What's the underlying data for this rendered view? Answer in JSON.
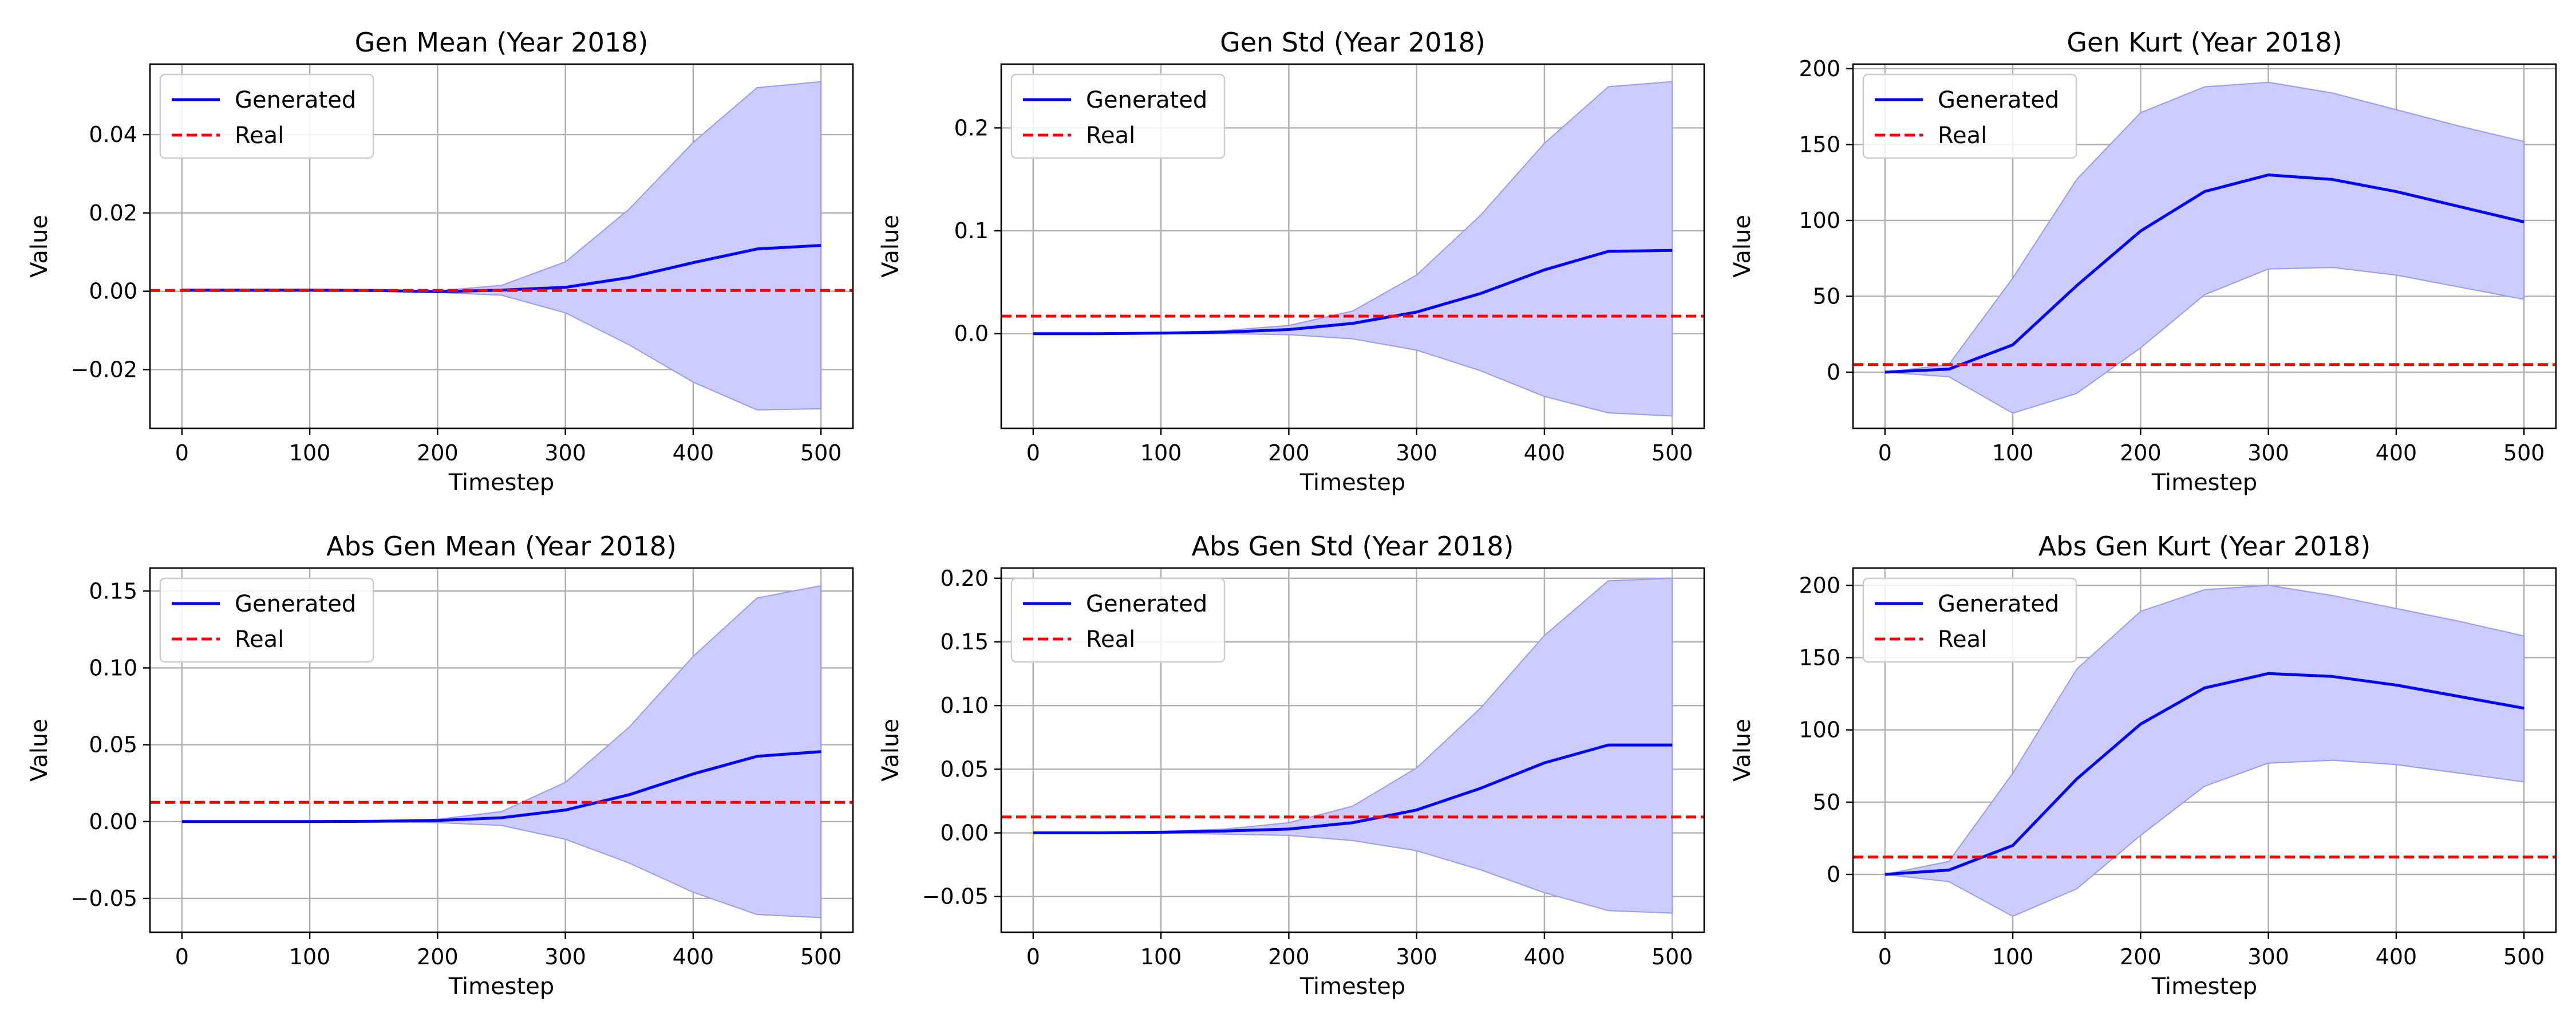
{
  "chart_data": [
    {
      "type": "line",
      "title": "Gen Mean (Year 2018)",
      "xlabel": "Timestep",
      "ylabel": "Value",
      "xlim": [
        -25,
        525
      ],
      "ylim": [
        -0.035,
        0.058
      ],
      "xticks": [
        0,
        100,
        200,
        300,
        400,
        500
      ],
      "yticks": [
        -0.02,
        0.0,
        0.02,
        0.04
      ],
      "ytick_labels": [
        "−0.02",
        "0.00",
        "0.02",
        "0.04"
      ],
      "grid": true,
      "legend": {
        "position": "top-left",
        "entries": [
          "Generated",
          "Real"
        ]
      },
      "x": [
        0,
        50,
        100,
        150,
        200,
        250,
        300,
        350,
        400,
        450,
        500
      ],
      "series": [
        {
          "name": "Generated",
          "color": "#0000ff",
          "style": "solid",
          "values": [
            0.0003,
            0.0003,
            0.0003,
            0.0002,
            -0.0001,
            0.0003,
            0.001,
            0.0035,
            0.0073,
            0.0108,
            0.0117
          ],
          "band_upper": [
            0.0004,
            0.0004,
            0.0004,
            0.0003,
            0.0001,
            0.0015,
            0.0075,
            0.021,
            0.038,
            0.052,
            0.0535
          ],
          "band_lower": [
            0.0002,
            0.0002,
            0.0002,
            0.0001,
            -0.0003,
            -0.001,
            -0.0055,
            -0.0137,
            -0.0232,
            -0.0303,
            -0.03
          ],
          "band_color": "#ccccff"
        },
        {
          "name": "Real",
          "color": "#ff0000",
          "style": "dashed",
          "constant": 0.0002
        }
      ]
    },
    {
      "type": "line",
      "title": "Gen Std (Year 2018)",
      "xlabel": "Timestep",
      "ylabel": "Value",
      "xlim": [
        -25,
        525
      ],
      "ylim": [
        -0.092,
        0.262
      ],
      "xticks": [
        0,
        100,
        200,
        300,
        400,
        500
      ],
      "yticks": [
        0.0,
        0.1,
        0.2
      ],
      "ytick_labels": [
        "0.0",
        "0.1",
        "0.2"
      ],
      "grid": true,
      "legend": {
        "position": "top-left",
        "entries": [
          "Generated",
          "Real"
        ]
      },
      "x": [
        0,
        50,
        100,
        150,
        200,
        250,
        300,
        350,
        400,
        450,
        500
      ],
      "series": [
        {
          "name": "Generated",
          "color": "#0000ff",
          "style": "solid",
          "values": [
            0.0,
            0.0,
            0.0005,
            0.0015,
            0.004,
            0.01,
            0.021,
            0.039,
            0.062,
            0.08,
            0.081
          ],
          "band_upper": [
            0.0,
            0.0,
            0.001,
            0.003,
            0.008,
            0.022,
            0.057,
            0.115,
            0.185,
            0.24,
            0.245
          ],
          "band_lower": [
            0.0,
            0.0,
            0.0,
            0.0,
            -0.001,
            -0.005,
            -0.016,
            -0.036,
            -0.061,
            -0.077,
            -0.08
          ],
          "band_color": "#ccccff"
        },
        {
          "name": "Real",
          "color": "#ff0000",
          "style": "dashed",
          "constant": 0.017
        }
      ]
    },
    {
      "type": "line",
      "title": "Gen Kurt (Year 2018)",
      "xlabel": "Timestep",
      "ylabel": "Value",
      "xlim": [
        -25,
        525
      ],
      "ylim": [
        -37,
        203
      ],
      "xticks": [
        0,
        100,
        200,
        300,
        400,
        500
      ],
      "yticks": [
        0,
        50,
        100,
        150,
        200
      ],
      "ytick_labels": [
        "0",
        "50",
        "100",
        "150",
        "200"
      ],
      "grid": true,
      "legend": {
        "position": "top-left",
        "entries": [
          "Generated",
          "Real"
        ]
      },
      "x": [
        0,
        50,
        100,
        150,
        200,
        250,
        300,
        350,
        400,
        450,
        500
      ],
      "series": [
        {
          "name": "Generated",
          "color": "#0000ff",
          "style": "solid",
          "values": [
            0,
            2,
            18,
            57,
            93,
            119,
            130,
            127,
            119,
            109,
            99
          ],
          "band_upper": [
            0,
            5,
            62,
            127,
            171,
            188,
            191,
            184,
            173,
            162,
            152
          ],
          "band_lower": [
            0,
            -3,
            -27,
            -14,
            16,
            51,
            68,
            69,
            64,
            56,
            48
          ],
          "band_color": "#ccccff"
        },
        {
          "name": "Real",
          "color": "#ff0000",
          "style": "dashed",
          "constant": 5
        }
      ]
    },
    {
      "type": "line",
      "title": "Abs Gen Mean (Year 2018)",
      "xlabel": "Timestep",
      "ylabel": "Value",
      "xlim": [
        -25,
        525
      ],
      "ylim": [
        -0.072,
        0.165
      ],
      "xticks": [
        0,
        100,
        200,
        300,
        400,
        500
      ],
      "yticks": [
        -0.05,
        0.0,
        0.05,
        0.1,
        0.15
      ],
      "ytick_labels": [
        "−0.05",
        "0.00",
        "0.05",
        "0.10",
        "0.15"
      ],
      "grid": true,
      "legend": {
        "position": "top-left",
        "entries": [
          "Generated",
          "Real"
        ]
      },
      "x": [
        0,
        50,
        100,
        150,
        200,
        250,
        300,
        350,
        400,
        450,
        500
      ],
      "series": [
        {
          "name": "Generated",
          "color": "#0000ff",
          "style": "solid",
          "values": [
            0.0,
            0.0,
            0.0,
            0.0002,
            0.0007,
            0.0025,
            0.0075,
            0.0175,
            0.031,
            0.0425,
            0.0455
          ],
          "band_upper": [
            0.0,
            0.0,
            0.0001,
            0.0005,
            0.0015,
            0.0065,
            0.0255,
            0.0615,
            0.1075,
            0.1455,
            0.1535
          ],
          "band_lower": [
            0.0,
            0.0,
            -0.0001,
            -0.0002,
            -0.0007,
            -0.0025,
            -0.0115,
            -0.027,
            -0.046,
            -0.0605,
            -0.0625
          ],
          "band_color": "#ccccff"
        },
        {
          "name": "Real",
          "color": "#ff0000",
          "style": "dashed",
          "constant": 0.0125
        }
      ]
    },
    {
      "type": "line",
      "title": "Abs Gen Std (Year 2018)",
      "xlabel": "Timestep",
      "ylabel": "Value",
      "xlim": [
        -25,
        525
      ],
      "ylim": [
        -0.078,
        0.208
      ],
      "xticks": [
        0,
        100,
        200,
        300,
        400,
        500
      ],
      "yticks": [
        -0.05,
        0.0,
        0.05,
        0.1,
        0.15,
        0.2
      ],
      "ytick_labels": [
        "−0.05",
        "0.00",
        "0.05",
        "0.10",
        "0.15",
        "0.20"
      ],
      "grid": true,
      "legend": {
        "position": "top-left",
        "entries": [
          "Generated",
          "Real"
        ]
      },
      "x": [
        0,
        50,
        100,
        150,
        200,
        250,
        300,
        350,
        400,
        450,
        500
      ],
      "series": [
        {
          "name": "Generated",
          "color": "#0000ff",
          "style": "solid",
          "values": [
            0.0,
            0.0,
            0.0005,
            0.0015,
            0.003,
            0.008,
            0.018,
            0.035,
            0.055,
            0.069,
            0.069
          ],
          "band_upper": [
            0.0,
            0.0,
            0.001,
            0.003,
            0.008,
            0.021,
            0.051,
            0.098,
            0.155,
            0.198,
            0.2
          ],
          "band_lower": [
            0.0,
            0.0,
            0.0,
            -0.001,
            -0.002,
            -0.006,
            -0.014,
            -0.029,
            -0.047,
            -0.061,
            -0.063
          ],
          "band_color": "#ccccff"
        },
        {
          "name": "Real",
          "color": "#ff0000",
          "style": "dashed",
          "constant": 0.0125
        }
      ]
    },
    {
      "type": "line",
      "title": "Abs Gen Kurt (Year 2018)",
      "xlabel": "Timestep",
      "ylabel": "Value",
      "xlim": [
        -25,
        525
      ],
      "ylim": [
        -40,
        212
      ],
      "xticks": [
        0,
        100,
        200,
        300,
        400,
        500
      ],
      "yticks": [
        0,
        50,
        100,
        150,
        200
      ],
      "ytick_labels": [
        "0",
        "50",
        "100",
        "150",
        "200"
      ],
      "grid": true,
      "legend": {
        "position": "top-left",
        "entries": [
          "Generated",
          "Real"
        ]
      },
      "x": [
        0,
        50,
        100,
        150,
        200,
        250,
        300,
        350,
        400,
        450,
        500
      ],
      "series": [
        {
          "name": "Generated",
          "color": "#0000ff",
          "style": "solid",
          "values": [
            0,
            3,
            20,
            66,
            104,
            129,
            139,
            137,
            131,
            123,
            115
          ],
          "band_upper": [
            0,
            9,
            70,
            142,
            182,
            197,
            200,
            193,
            184,
            175,
            165
          ],
          "band_lower": [
            0,
            -5,
            -29,
            -10,
            27,
            61,
            77,
            79,
            76,
            70,
            64
          ],
          "band_color": "#ccccff"
        },
        {
          "name": "Real",
          "color": "#ff0000",
          "style": "dashed",
          "constant": 12
        }
      ]
    }
  ]
}
